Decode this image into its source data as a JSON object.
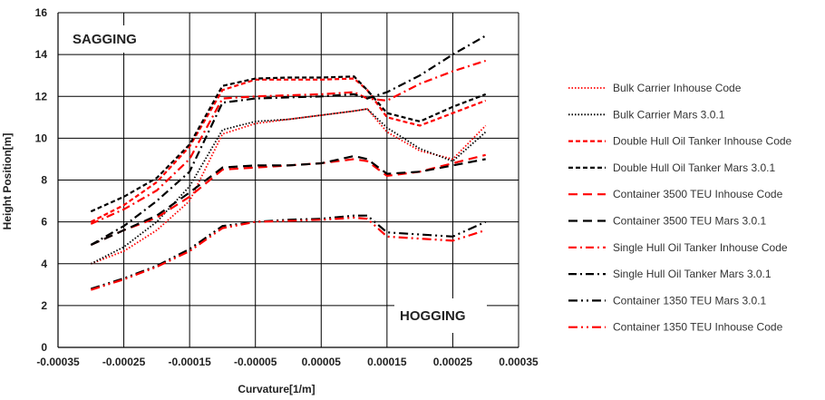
{
  "chart_data": {
    "type": "line",
    "xlabel": "Curvature[1/m]",
    "ylabel": "Height Position[m]",
    "xlim": [
      -0.00035,
      0.00035
    ],
    "ylim": [
      0,
      16
    ],
    "xticks": [
      "-0.00035",
      "-0.00025",
      "-0.00015",
      "-0.00005",
      "0.00005",
      "0.00015",
      "0.00025",
      "0.00035"
    ],
    "yticks": [
      "0",
      "2",
      "4",
      "6",
      "8",
      "10",
      "12",
      "14",
      "16"
    ],
    "grid": true,
    "legend_position": "right",
    "annotations": [
      {
        "text": "SAGGING",
        "position": "top-left"
      },
      {
        "text": "HOGGING",
        "position": "bottom-right"
      }
    ],
    "series": [
      {
        "name": "Bulk Carrier Inhouse Code",
        "color": "#ff0000",
        "style": "dotted",
        "x": [
          -0.0003,
          -0.00025,
          -0.0002,
          -0.00015,
          -0.0001,
          -5e-05,
          0,
          5e-05,
          0.0001,
          0.00012,
          0.00015,
          0.0002,
          0.00025,
          0.0003
        ],
        "y": [
          4.0,
          4.6,
          5.6,
          7.0,
          10.2,
          10.7,
          10.9,
          11.1,
          11.3,
          11.4,
          10.3,
          9.4,
          9.0,
          10.6
        ]
      },
      {
        "name": "Bulk Carrier Mars 3.0.1",
        "color": "#000000",
        "style": "dotted",
        "x": [
          -0.0003,
          -0.00025,
          -0.0002,
          -0.00015,
          -0.0001,
          -5e-05,
          0,
          5e-05,
          0.0001,
          0.00012,
          0.00015,
          0.0002,
          0.00025,
          0.0003
        ],
        "y": [
          4.0,
          4.8,
          6.0,
          7.7,
          10.4,
          10.8,
          10.9,
          11.1,
          11.3,
          11.4,
          10.5,
          9.5,
          8.9,
          10.3
        ]
      },
      {
        "name": "Double Hull Oil Tanker Inhouse Code",
        "color": "#ff0000",
        "style": "dashed-short",
        "x": [
          -0.0003,
          -0.00025,
          -0.0002,
          -0.00015,
          -0.0001,
          -5e-05,
          0,
          5e-05,
          0.0001,
          0.00012,
          0.00015,
          0.0002,
          0.00025,
          0.0003
        ],
        "y": [
          6.0,
          6.8,
          7.9,
          9.6,
          12.3,
          12.8,
          12.8,
          12.8,
          12.85,
          12.3,
          11.0,
          10.6,
          11.2,
          11.8
        ]
      },
      {
        "name": "Double Hull Oil Tanker Mars 3.0.1",
        "color": "#000000",
        "style": "dashed-short",
        "x": [
          -0.0003,
          -0.00025,
          -0.0002,
          -0.00015,
          -0.0001,
          -5e-05,
          0,
          5e-05,
          0.0001,
          0.00012,
          0.00015,
          0.0002,
          0.00025,
          0.0003
        ],
        "y": [
          6.5,
          7.2,
          8.1,
          9.7,
          12.5,
          12.85,
          12.9,
          12.9,
          12.95,
          12.3,
          11.2,
          10.8,
          11.5,
          12.1
        ]
      },
      {
        "name": "Container 3500 TEU Inhouse Code",
        "color": "#ff0000",
        "style": "dashed-long",
        "x": [
          -0.0003,
          -0.00025,
          -0.0002,
          -0.00015,
          -0.0001,
          -5e-05,
          0,
          5e-05,
          0.0001,
          0.00012,
          0.00015,
          0.0002,
          0.00025,
          0.0003
        ],
        "y": [
          4.9,
          5.6,
          6.2,
          7.2,
          8.5,
          8.6,
          8.7,
          8.8,
          9.0,
          8.9,
          8.2,
          8.4,
          8.8,
          9.2
        ]
      },
      {
        "name": "Container 3500 TEU Mars 3.0.1",
        "color": "#000000",
        "style": "dashed-long",
        "x": [
          -0.0003,
          -0.00025,
          -0.0002,
          -0.00015,
          -0.0001,
          -5e-05,
          0,
          5e-05,
          0.0001,
          0.00012,
          0.00015,
          0.0002,
          0.00025,
          0.0003
        ],
        "y": [
          4.9,
          5.6,
          6.3,
          7.4,
          8.6,
          8.7,
          8.7,
          8.8,
          9.15,
          9.0,
          8.3,
          8.4,
          8.7,
          9.0
        ]
      },
      {
        "name": "Single Hull Oil Tanker Inhouse Code",
        "color": "#ff0000",
        "style": "dash-dot",
        "x": [
          -0.0003,
          -0.00025,
          -0.0002,
          -0.00015,
          -0.0001,
          -5e-05,
          0,
          5e-05,
          0.0001,
          0.00012,
          0.00015,
          0.0002,
          0.00025,
          0.0003
        ],
        "y": [
          5.9,
          6.6,
          7.5,
          9.0,
          11.9,
          12.0,
          12.05,
          12.1,
          12.2,
          11.9,
          11.8,
          12.6,
          13.2,
          13.7
        ]
      },
      {
        "name": "Single Hull Oil Tanker Mars 3.0.1",
        "color": "#000000",
        "style": "dash-dot",
        "x": [
          -0.0003,
          -0.00025,
          -0.0002,
          -0.00015,
          -0.0001,
          -5e-05,
          0,
          5e-05,
          0.0001,
          0.00012,
          0.00015,
          0.0002,
          0.00025,
          0.0003
        ],
        "y": [
          4.9,
          5.8,
          7.0,
          8.4,
          11.7,
          11.9,
          11.95,
          12.0,
          12.1,
          11.9,
          12.2,
          13.0,
          14.0,
          14.9
        ]
      },
      {
        "name": "Container 1350 TEU Mars 3.0.1",
        "color": "#000000",
        "style": "dash-dot-dot",
        "x": [
          -0.0003,
          -0.00025,
          -0.0002,
          -0.00015,
          -0.0001,
          -5e-05,
          0,
          5e-05,
          0.0001,
          0.00012,
          0.00015,
          0.0002,
          0.00025,
          0.0003
        ],
        "y": [
          2.8,
          3.3,
          3.9,
          4.7,
          5.8,
          6.0,
          6.1,
          6.15,
          6.3,
          6.3,
          5.5,
          5.4,
          5.3,
          6.0
        ]
      },
      {
        "name": "Container 1350 TEU Inhouse Code",
        "color": "#ff0000",
        "style": "dash-dot-dot",
        "x": [
          -0.0003,
          -0.00025,
          -0.0002,
          -0.00015,
          -0.0001,
          -5e-05,
          0,
          5e-05,
          0.0001,
          0.00012,
          0.00015,
          0.0002,
          0.00025,
          0.0003
        ],
        "y": [
          2.75,
          3.25,
          3.85,
          4.6,
          5.7,
          6.0,
          6.05,
          6.1,
          6.2,
          6.15,
          5.3,
          5.2,
          5.1,
          5.6
        ]
      }
    ]
  }
}
